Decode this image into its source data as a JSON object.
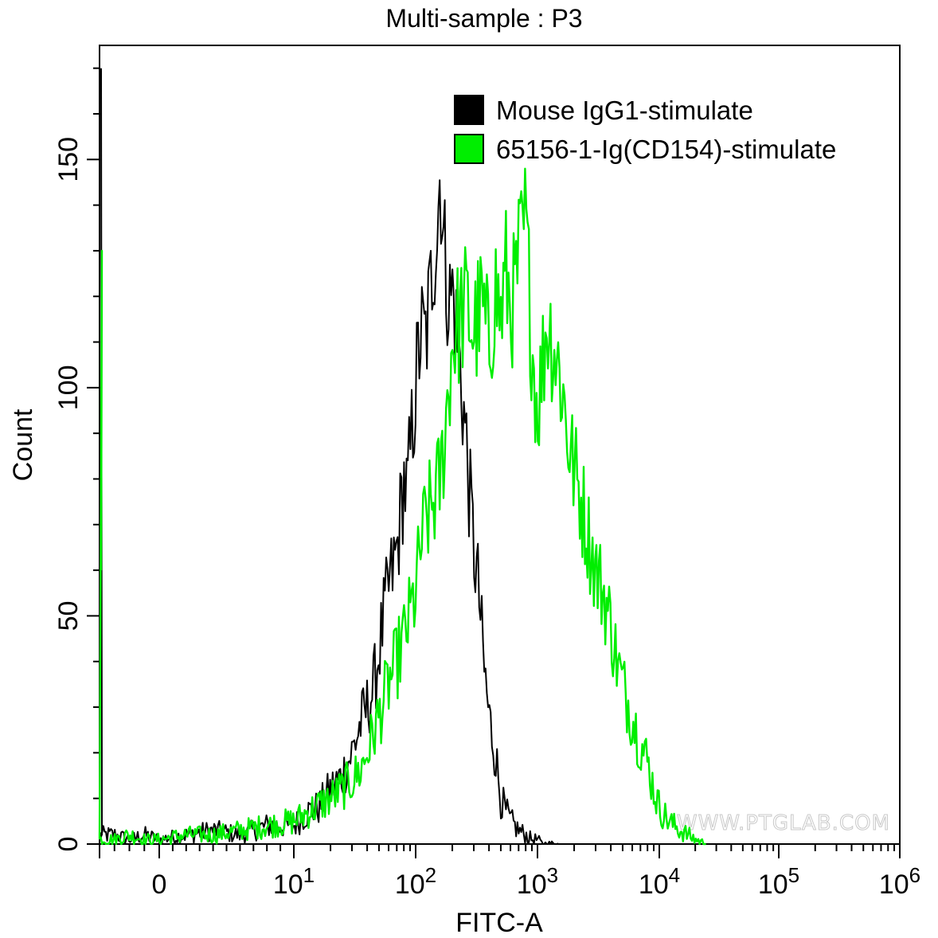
{
  "chart_data": {
    "type": "line",
    "title": "Multi-sample : P3",
    "xlabel": "FITC-A",
    "ylabel": "Count",
    "x_scale": "biexponential",
    "xlim": [
      -40,
      1000000
    ],
    "ylim": [
      0,
      175
    ],
    "y_ticks": [
      0,
      50,
      100,
      150
    ],
    "x_ticks": [
      {
        "base": "0",
        "exp": ""
      },
      {
        "base": "10",
        "exp": "1"
      },
      {
        "base": "10",
        "exp": "2"
      },
      {
        "base": "10",
        "exp": "3"
      },
      {
        "base": "10",
        "exp": "4"
      },
      {
        "base": "10",
        "exp": "5"
      },
      {
        "base": "10",
        "exp": "6"
      }
    ],
    "grid": false,
    "legend_position": "top-right",
    "series": [
      {
        "name": "Mouse IgG1-stimulate",
        "color": "#000000",
        "x": [
          -40,
          -30,
          -20,
          -10,
          0,
          2,
          4,
          6,
          8,
          10,
          13,
          16,
          20,
          25,
          30,
          35,
          40,
          45,
          50,
          55,
          60,
          65,
          70,
          75,
          80,
          85,
          90,
          100,
          110,
          120,
          130,
          140,
          150,
          160,
          170,
          180,
          190,
          200,
          210,
          220,
          240,
          260,
          280,
          300,
          330,
          360,
          400,
          450,
          500,
          550,
          600,
          650,
          700,
          800,
          900,
          1000,
          1100,
          1300,
          1500
        ],
        "values": [
          2,
          2,
          1,
          2,
          1,
          2,
          3,
          2,
          4,
          4,
          7,
          8,
          12,
          15,
          20,
          26,
          30,
          34,
          42,
          50,
          56,
          60,
          64,
          72,
          80,
          76,
          85,
          100,
          112,
          110,
          118,
          130,
          135,
          149,
          130,
          125,
          118,
          122,
          115,
          110,
          100,
          88,
          75,
          65,
          55,
          40,
          28,
          20,
          10,
          7,
          5,
          4,
          3,
          2,
          1,
          1,
          0,
          0,
          0
        ]
      },
      {
        "name": "65156-1-Ig(CD154)-stimulate",
        "color": "#00ee00",
        "x": [
          -40,
          -30,
          -20,
          -10,
          0,
          2,
          4,
          6,
          8,
          10,
          15,
          20,
          25,
          30,
          35,
          40,
          50,
          60,
          70,
          80,
          90,
          100,
          110,
          120,
          140,
          160,
          180,
          200,
          230,
          260,
          300,
          350,
          400,
          450,
          500,
          550,
          600,
          650,
          700,
          800,
          900,
          1000,
          1100,
          1200,
          1400,
          1600,
          1800,
          2000,
          2300,
          2600,
          3000,
          3500,
          4000,
          4500,
          5000,
          6000,
          7000,
          8000,
          9000,
          10000,
          12000,
          15000,
          20000,
          25000
        ],
        "values": [
          1,
          1,
          2,
          1,
          1,
          2,
          2,
          3,
          4,
          5,
          8,
          10,
          12,
          14,
          16,
          20,
          28,
          35,
          40,
          45,
          50,
          55,
          65,
          70,
          75,
          80,
          95,
          110,
          115,
          118,
          112,
          118,
          108,
          122,
          115,
          125,
          118,
          120,
          128,
          136,
          110,
          95,
          105,
          115,
          108,
          100,
          88,
          82,
          75,
          68,
          60,
          55,
          48,
          40,
          35,
          28,
          22,
          18,
          12,
          8,
          5,
          3,
          1,
          0
        ]
      }
    ]
  },
  "watermark": "WWW.PTGLAB.COM"
}
